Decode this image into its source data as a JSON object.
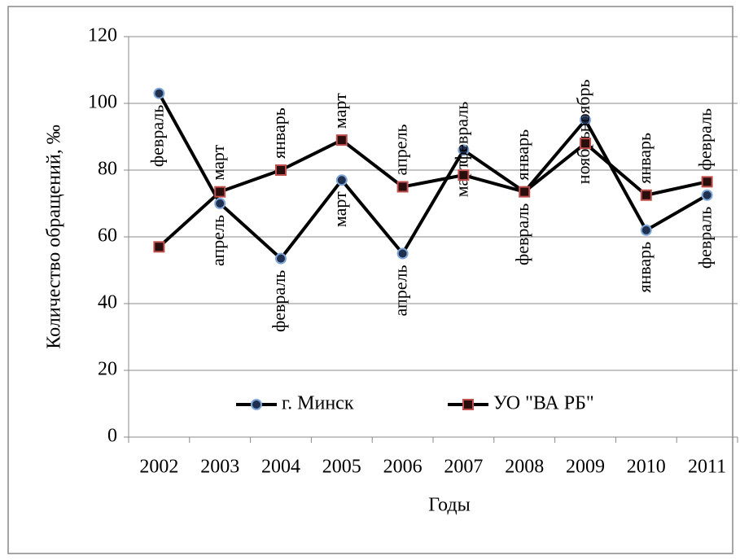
{
  "chart_data": {
    "type": "line",
    "x_label": "Годы",
    "y_label": "Количество обращений, ‰",
    "categories": [
      "2002",
      "2003",
      "2004",
      "2005",
      "2006",
      "2007",
      "2008",
      "2009",
      "2010",
      "2011"
    ],
    "series": [
      {
        "name": "г. Минск",
        "color": "#000000",
        "marker": "circle",
        "marker_color": "#1f2f4f",
        "marker_edge": "#7fa6d6",
        "label_position": "below",
        "values": [
          103,
          70,
          53.5,
          77,
          55,
          86,
          73.5,
          95,
          62,
          72.5
        ],
        "value_labels": [
          "февраль",
          "апрель",
          "февраль",
          "март",
          "апрель",
          "март",
          "февраль",
          "ноябрь",
          "январь",
          "февраль"
        ]
      },
      {
        "name": "УО \"ВА РБ\"",
        "color": "#000000",
        "marker": "square",
        "marker_color": "#2a0e0e",
        "marker_edge": "#c0504d",
        "label_position": "above",
        "values": [
          57,
          73.5,
          80,
          89,
          75,
          78.5,
          73.5,
          88,
          72.5,
          76.5
        ],
        "value_labels": [
          null,
          "март",
          "январь",
          "март",
          "апрель",
          "февраль",
          "январь",
          "ноябрь",
          "январь",
          "февраль"
        ]
      }
    ],
    "ylim": [
      0,
      120
    ],
    "yticks": [
      0,
      20,
      40,
      60,
      80,
      100,
      120
    ],
    "grid": true,
    "legend": "bottom"
  }
}
